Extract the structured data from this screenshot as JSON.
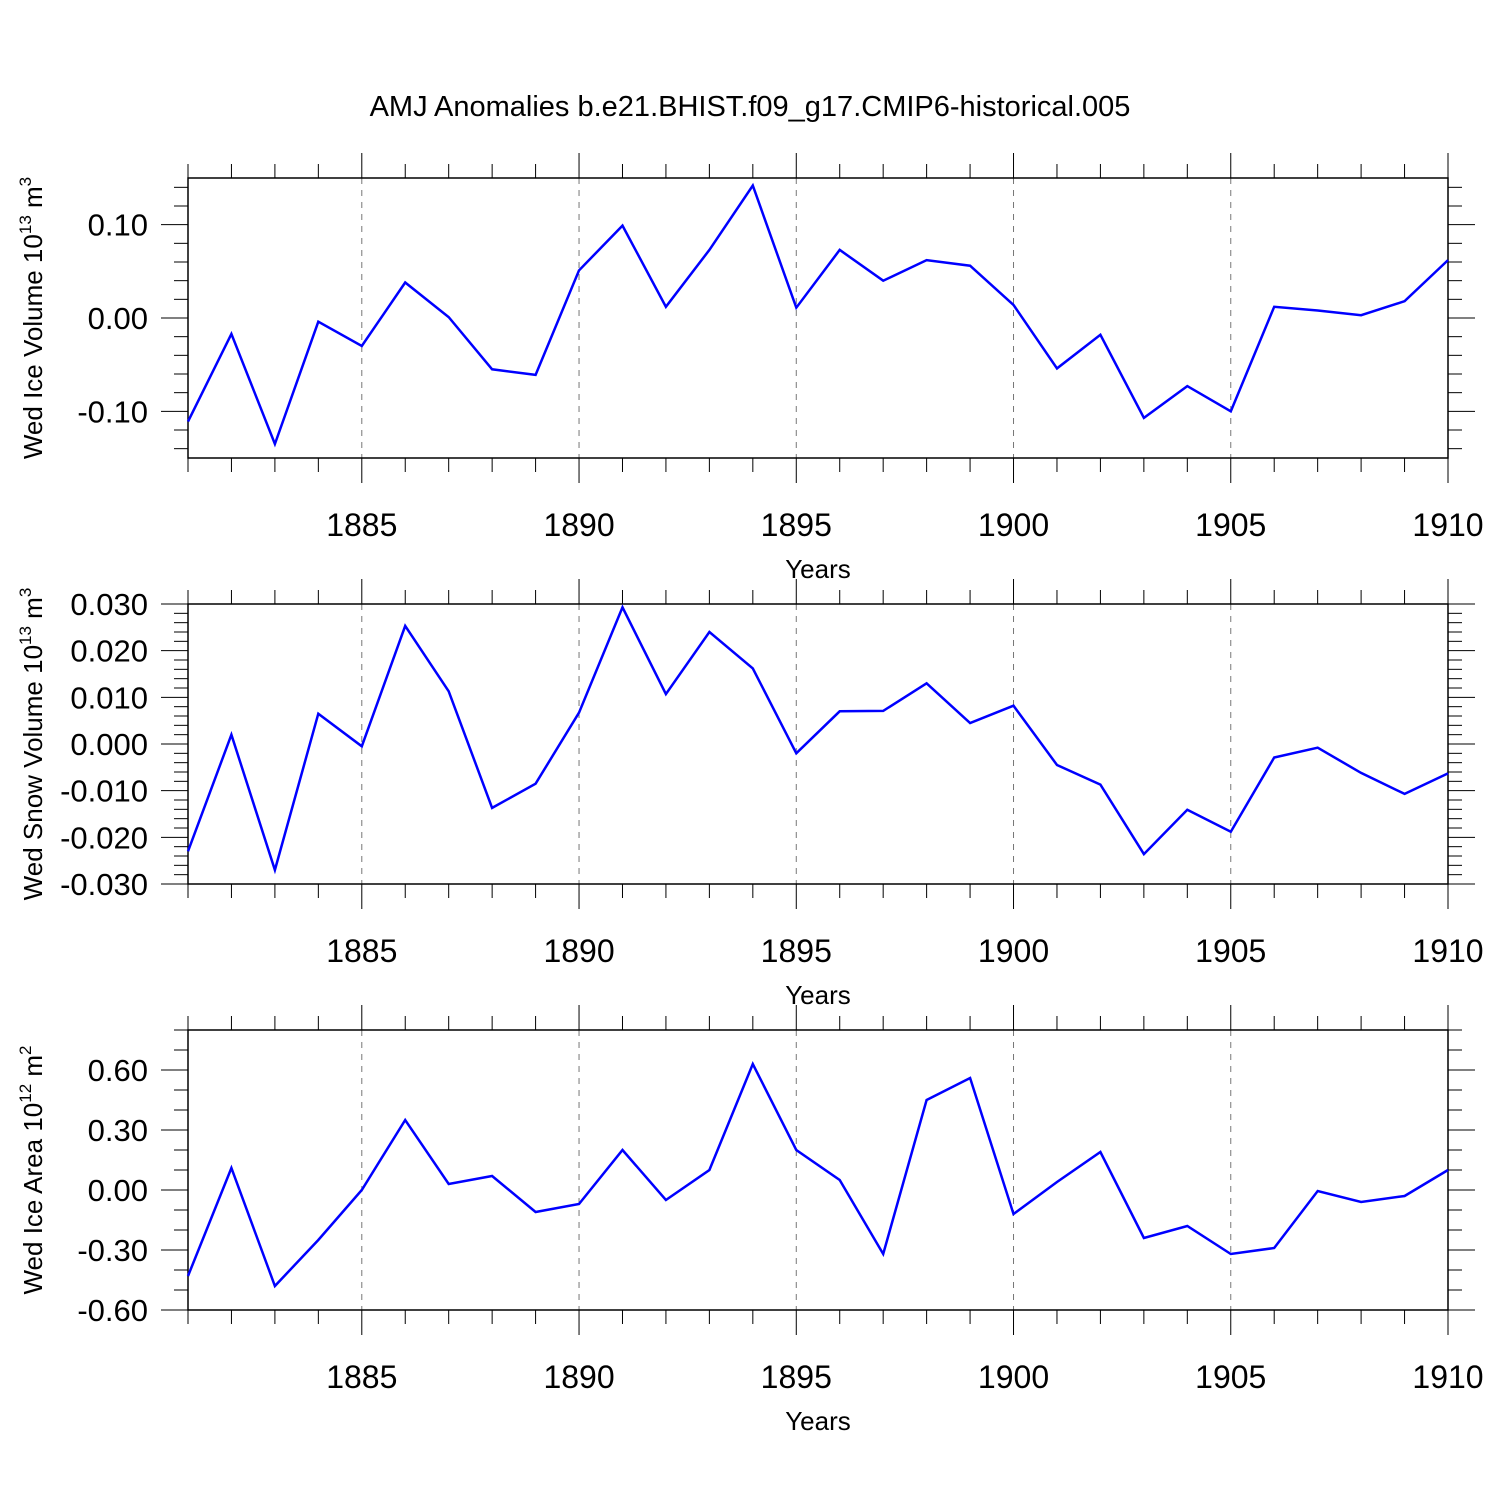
{
  "title": "AMJ Anomalies b.e21.BHIST.f09_g17.CMIP6-historical.005",
  "line_color": "#0000ff",
  "chart_data": [
    {
      "type": "line",
      "id": "ice-volume",
      "ylabel_main": "Wed Ice Volume 10",
      "ylabel_exp": "13",
      "ylabel_unit": " m",
      "ylabel_unit_exp": "3",
      "xlabel": "Years",
      "xlim": [
        1881,
        1910
      ],
      "ylim": [
        -0.15,
        0.15
      ],
      "yticks": [
        -0.1,
        0.0,
        0.1
      ],
      "ytick_labels": [
        "-0.10",
        "0.00",
        "0.10"
      ],
      "yminor": [
        -0.14,
        -0.12,
        -0.08,
        -0.06,
        -0.04,
        -0.02,
        0.02,
        0.04,
        0.06,
        0.08,
        0.12,
        0.14
      ],
      "xticks": [
        1885,
        1890,
        1895,
        1900,
        1905,
        1910
      ],
      "xtick_labels": [
        "1885",
        "1890",
        "1895",
        "1900",
        "1905",
        "1910"
      ],
      "grid_years": [
        1885,
        1890,
        1895,
        1900,
        1905
      ],
      "series": [
        {
          "name": "Wed Ice Volume",
          "x": [
            1881,
            1882,
            1883,
            1884,
            1885,
            1886,
            1887,
            1888,
            1889,
            1890,
            1891,
            1892,
            1893,
            1894,
            1895,
            1896,
            1897,
            1898,
            1899,
            1900,
            1901,
            1902,
            1903,
            1904,
            1905,
            1906,
            1907,
            1908,
            1909,
            1910
          ],
          "values": [
            -0.111,
            -0.017,
            -0.135,
            -0.004,
            -0.03,
            0.038,
            0.001,
            -0.055,
            -0.061,
            0.051,
            0.099,
            0.012,
            0.073,
            0.142,
            0.011,
            0.073,
            0.04,
            0.062,
            0.056,
            0.014,
            -0.054,
            -0.018,
            -0.107,
            -0.073,
            -0.1,
            0.012,
            0.008,
            0.003,
            0.018,
            0.062
          ]
        }
      ]
    },
    {
      "type": "line",
      "id": "snow-volume",
      "ylabel_main": "Wed Snow Volume 10",
      "ylabel_exp": "13",
      "ylabel_unit": " m",
      "ylabel_unit_exp": "3",
      "xlabel": "Years",
      "xlim": [
        1881,
        1910
      ],
      "ylim": [
        -0.03,
        0.03
      ],
      "yticks": [
        -0.03,
        -0.02,
        -0.01,
        0.0,
        0.01,
        0.02,
        0.03
      ],
      "ytick_labels": [
        "-0.030",
        "-0.020",
        "-0.010",
        "0.000",
        "0.010",
        "0.020",
        "0.030"
      ],
      "yminor": [
        -0.028,
        -0.026,
        -0.024,
        -0.022,
        -0.018,
        -0.016,
        -0.014,
        -0.012,
        -0.008,
        -0.006,
        -0.004,
        -0.002,
        0.002,
        0.004,
        0.006,
        0.008,
        0.012,
        0.014,
        0.016,
        0.018,
        0.022,
        0.024,
        0.026,
        0.028
      ],
      "xticks": [
        1885,
        1890,
        1895,
        1900,
        1905,
        1910
      ],
      "xtick_labels": [
        "1885",
        "1890",
        "1895",
        "1900",
        "1905",
        "1910"
      ],
      "grid_years": [
        1885,
        1890,
        1895,
        1900,
        1905
      ],
      "series": [
        {
          "name": "Wed Snow Volume",
          "x": [
            1881,
            1882,
            1883,
            1884,
            1885,
            1886,
            1887,
            1888,
            1889,
            1890,
            1891,
            1892,
            1893,
            1894,
            1895,
            1896,
            1897,
            1898,
            1899,
            1900,
            1901,
            1902,
            1903,
            1904,
            1905,
            1906,
            1907,
            1908,
            1909,
            1910
          ],
          "values": [
            -0.023,
            0.002,
            -0.027,
            0.0065,
            -0.0005,
            0.0253,
            0.0113,
            -0.0137,
            -0.0085,
            0.0067,
            0.0293,
            0.0107,
            0.024,
            0.0162,
            -0.002,
            0.007,
            0.0071,
            0.013,
            0.0045,
            0.0082,
            -0.0045,
            -0.0087,
            -0.0236,
            -0.0141,
            -0.0188,
            -0.0029,
            -0.0008,
            -0.0062,
            -0.0107,
            -0.0063
          ]
        }
      ]
    },
    {
      "type": "line",
      "id": "ice-area",
      "ylabel_main": "Wed Ice Area 10",
      "ylabel_exp": "12",
      "ylabel_unit": " m",
      "ylabel_unit_exp": "2",
      "xlabel": "Years",
      "xlim": [
        1881,
        1910
      ],
      "ylim": [
        -0.6,
        0.8
      ],
      "yticks": [
        -0.6,
        -0.3,
        0.0,
        0.3,
        0.6
      ],
      "ytick_labels": [
        "-0.60",
        "-0.30",
        "0.00",
        "0.30",
        "0.60"
      ],
      "yminor": [
        -0.5,
        -0.4,
        -0.2,
        -0.1,
        0.1,
        0.2,
        0.4,
        0.5,
        0.7,
        0.8
      ],
      "xticks": [
        1885,
        1890,
        1895,
        1900,
        1905,
        1910
      ],
      "xtick_labels": [
        "1885",
        "1890",
        "1895",
        "1900",
        "1905",
        "1910"
      ],
      "grid_years": [
        1885,
        1890,
        1895,
        1900,
        1905
      ],
      "series": [
        {
          "name": "Wed Ice Area",
          "x": [
            1881,
            1882,
            1883,
            1884,
            1885,
            1886,
            1887,
            1888,
            1889,
            1890,
            1891,
            1892,
            1893,
            1894,
            1895,
            1896,
            1897,
            1898,
            1899,
            1900,
            1901,
            1902,
            1903,
            1904,
            1905,
            1906,
            1907,
            1908,
            1909,
            1910
          ],
          "values": [
            -0.43,
            0.11,
            -0.48,
            -0.25,
            0.0,
            0.35,
            0.03,
            0.07,
            -0.11,
            -0.07,
            0.2,
            -0.05,
            0.1,
            0.63,
            0.2,
            0.05,
            -0.32,
            0.45,
            0.56,
            -0.12,
            0.04,
            0.19,
            -0.24,
            -0.18,
            -0.32,
            -0.29,
            -0.005,
            -0.06,
            -0.03,
            0.1
          ]
        }
      ]
    }
  ]
}
